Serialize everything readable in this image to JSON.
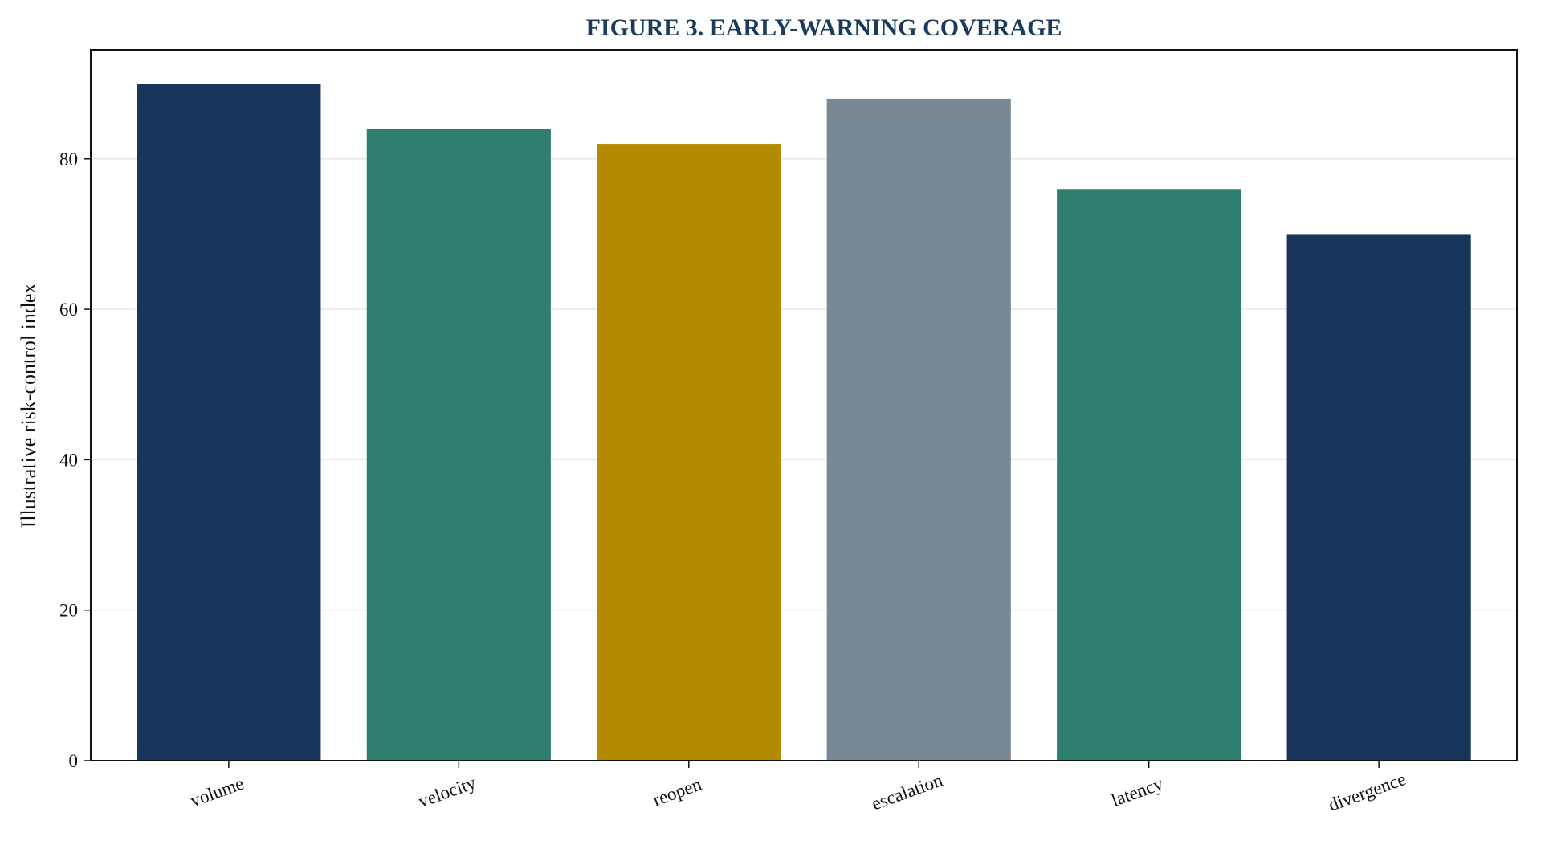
{
  "colors": {
    "title": "#1b3a5c",
    "grid": "#e6e6e6",
    "axis": "#111111",
    "navy": "#18365c",
    "teal": "#2e7f6f",
    "gold": "#b38a00",
    "slate": "#7a8794"
  },
  "chart_data": {
    "type": "bar",
    "title": "FIGURE 3. EARLY-WARNING COVERAGE",
    "xlabel": "",
    "ylabel": "Illustrative risk-control index",
    "categories": [
      "volume",
      "velocity",
      "reopen",
      "escalation",
      "latency",
      "divergence"
    ],
    "values": [
      90,
      84,
      82,
      88,
      76,
      70
    ],
    "bar_colors": [
      "#18365c",
      "#2e7f6f",
      "#b38a00",
      "#7a8794",
      "#2e7f6f",
      "#18365c"
    ],
    "ylim": [
      0,
      94.5
    ],
    "yticks": [
      0,
      20,
      40,
      60,
      80
    ],
    "grid": "horizontal",
    "legend": "none"
  }
}
